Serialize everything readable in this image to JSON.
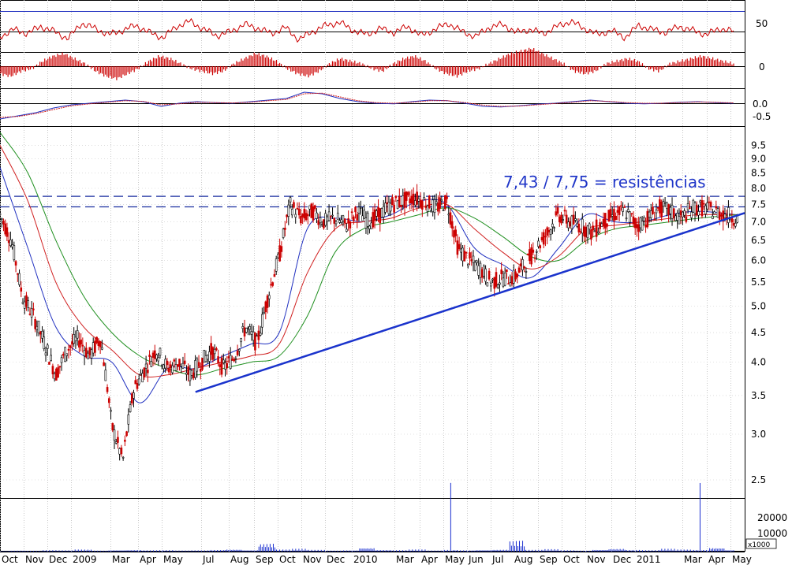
{
  "colors": {
    "price": "#cc0000",
    "ma_fast": "#2030c0",
    "ma_mid": "#d02020",
    "ma_slow": "#209020",
    "trendline": "#1a33cc",
    "resistance": "#1a2fa0",
    "volume": "#1a2fd0",
    "annotation": "#2036c8",
    "grid": "#c8c8c8"
  },
  "chart_data": [
    {
      "type": "line",
      "panel": "oscillator-1",
      "yticks": [
        "50"
      ],
      "reference_lines": [
        50
      ],
      "series": [
        {
          "values": [
            45,
            52,
            48,
            55,
            50,
            43,
            58,
            53,
            47,
            51,
            56,
            49,
            44,
            55,
            60,
            52,
            46,
            50,
            57,
            53,
            48,
            54,
            42,
            50,
            56,
            59,
            51,
            47,
            53,
            49,
            55,
            46,
            52,
            58,
            50,
            45,
            54,
            57,
            49,
            52,
            48,
            55,
            60,
            53,
            47,
            51,
            44,
            56,
            52,
            49,
            55,
            51,
            47,
            53,
            50
          ]
        }
      ]
    },
    {
      "type": "bar",
      "panel": "histogram",
      "yticks": [
        "0"
      ],
      "values": [
        -3,
        -4,
        -2,
        -1,
        2,
        4,
        5,
        3,
        1,
        -2,
        -4,
        -5,
        -3,
        -1,
        2,
        4,
        3,
        1,
        -1,
        -2,
        -3,
        -2,
        1,
        3,
        5,
        4,
        2,
        -1,
        -3,
        -4,
        -2,
        1,
        3,
        2,
        1,
        -1,
        -2,
        1,
        3,
        4,
        2,
        -1,
        -3,
        -4,
        -2,
        -1,
        1,
        3,
        5,
        6,
        7,
        5,
        3,
        1,
        -2,
        -3,
        -2,
        1,
        2,
        3,
        2,
        -1,
        -2,
        1,
        2,
        3,
        4,
        3,
        2,
        1
      ]
    },
    {
      "type": "line",
      "panel": "macd",
      "yticks": [
        "0.0",
        "-0.5"
      ],
      "series": [
        {
          "values": [
            -0.5,
            -0.4,
            -0.3,
            -0.15,
            -0.05,
            0.0,
            0.05,
            0.1,
            0.05,
            -0.1,
            0.0,
            0.05,
            0.02,
            0.0,
            0.05,
            0.1,
            0.15,
            0.35,
            0.3,
            0.15,
            0.05,
            0.0,
            -0.02,
            0.05,
            0.1,
            0.08,
            0.0,
            -0.1,
            -0.12,
            -0.08,
            -0.03,
            0.0,
            0.05,
            0.1,
            0.05,
            0.0,
            -0.02,
            0.0,
            0.03,
            0.05,
            0.02,
            0.0
          ]
        },
        {
          "values": [
            -0.45,
            -0.42,
            -0.33,
            -0.2,
            -0.08,
            -0.02,
            0.03,
            0.08,
            0.06,
            -0.05,
            -0.02,
            0.03,
            0.02,
            0.01,
            0.03,
            0.08,
            0.12,
            0.3,
            0.32,
            0.2,
            0.08,
            0.02,
            0.0,
            0.03,
            0.08,
            0.08,
            0.02,
            -0.06,
            -0.1,
            -0.09,
            -0.05,
            -0.01,
            0.03,
            0.08,
            0.06,
            0.02,
            0.0,
            0.0,
            0.02,
            0.04,
            0.03,
            0.01
          ]
        }
      ]
    },
    {
      "type": "line",
      "panel": "price",
      "scale": "log",
      "yticks": [
        "9.5",
        "9.0",
        "8.5",
        "8.0",
        "7.5",
        "7.0",
        "6.5",
        "6.0",
        "5.5",
        "5.0",
        "4.5",
        "4.0",
        "3.5",
        "3.0",
        "2.5"
      ],
      "ylim": [
        2.3,
        10.2
      ],
      "xticks": [
        "Oct",
        "Nov",
        "Dec",
        "2009",
        "Mar",
        "Apr",
        "May",
        "Jul",
        "Aug",
        "Sep",
        "Oct",
        "Nov",
        "Dec",
        "2010",
        "Mar",
        "Apr",
        "May",
        "Jun",
        "Jul",
        "Aug",
        "Sep",
        "Oct",
        "Nov",
        "Dec",
        "2011",
        "Mar",
        "Apr",
        "May"
      ],
      "xlim": [
        0,
        40
      ],
      "series": [
        {
          "name": "price",
          "x": [
            0,
            0.6,
            1.2,
            1.8,
            2.4,
            3.0,
            3.6,
            4.2,
            4.8,
            5.4,
            6.0,
            6.6,
            7.2,
            7.8,
            8.4,
            9.0,
            9.6,
            10.2,
            10.8,
            11.4,
            12.0,
            12.6,
            13.2,
            13.8,
            14.4,
            15.0,
            15.6,
            16.2,
            16.8,
            17.4,
            18.0,
            18.6,
            19.2,
            19.8,
            20.4,
            21.0,
            21.6,
            22.2,
            22.8,
            23.4,
            24.0,
            24.6,
            25.2,
            25.8,
            26.4,
            27.0,
            27.6,
            28.2,
            28.8,
            29.4,
            30.0,
            30.6,
            31.2,
            31.8,
            32.4,
            33.0,
            33.6,
            34.2,
            34.8,
            35.4,
            36.0,
            36.6,
            37.2,
            37.8,
            38.4,
            39.0,
            39.6
          ],
          "values": [
            7.2,
            6.5,
            5.2,
            4.8,
            4.3,
            3.8,
            4.2,
            4.4,
            4.1,
            4.4,
            3.1,
            2.7,
            3.6,
            3.9,
            4.2,
            3.9,
            4.0,
            3.8,
            4.0,
            4.2,
            3.9,
            4.1,
            4.6,
            4.3,
            5.2,
            6.1,
            7.5,
            7.1,
            7.3,
            7.0,
            7.1,
            6.9,
            7.3,
            7.0,
            7.2,
            7.5,
            7.6,
            7.7,
            7.6,
            7.4,
            7.6,
            6.3,
            6.0,
            5.8,
            5.5,
            5.6,
            5.6,
            5.9,
            6.3,
            6.7,
            7.2,
            7.0,
            6.9,
            6.7,
            7.0,
            7.2,
            7.3,
            6.9,
            7.1,
            7.4,
            7.3,
            7.1,
            7.4,
            7.4,
            7.3,
            7.2,
            7.1
          ]
        },
        {
          "name": "ma-fast",
          "x": [
            0,
            1.5,
            3,
            4.5,
            6,
            7.5,
            9,
            10.5,
            12,
            13.5,
            15,
            16.5,
            18,
            19.5,
            21,
            22.5,
            24,
            25.5,
            27,
            28.5,
            30,
            31.5,
            33,
            34.5,
            36,
            37.5,
            39.6
          ],
          "values": [
            8.7,
            6.3,
            4.6,
            4.1,
            4.0,
            3.4,
            3.9,
            3.9,
            4.1,
            4.3,
            4.5,
            6.8,
            7.1,
            7.0,
            7.2,
            7.6,
            7.5,
            6.3,
            5.9,
            5.6,
            6.3,
            7.2,
            7.0,
            7.0,
            7.2,
            7.3,
            7.2
          ]
        },
        {
          "name": "ma-mid",
          "x": [
            0,
            1.5,
            3,
            4.5,
            6,
            7.5,
            9,
            10.5,
            12,
            13.5,
            15,
            16.5,
            18,
            19.5,
            21,
            22.5,
            24,
            25.5,
            27,
            28.5,
            30,
            31.5,
            33,
            34.5,
            36,
            37.5,
            39.6
          ],
          "values": [
            9.5,
            7.6,
            5.5,
            4.6,
            4.2,
            3.8,
            3.8,
            3.9,
            4.0,
            4.1,
            4.3,
            5.7,
            6.8,
            7.0,
            7.1,
            7.4,
            7.5,
            6.8,
            6.2,
            5.8,
            6.1,
            6.8,
            6.9,
            7.0,
            7.1,
            7.2,
            7.2
          ]
        },
        {
          "name": "ma-slow",
          "x": [
            0,
            1.5,
            3,
            4.5,
            6,
            7.5,
            9,
            10.5,
            12,
            13.5,
            15,
            16.5,
            18,
            19.5,
            21,
            22.5,
            24,
            25.5,
            27,
            28.5,
            30,
            31.5,
            33,
            34.5,
            36,
            37.5,
            39.6
          ],
          "values": [
            10.0,
            8.5,
            6.5,
            5.2,
            4.5,
            4.1,
            3.9,
            3.8,
            3.9,
            4.0,
            4.1,
            4.8,
            6.2,
            6.8,
            7.0,
            7.2,
            7.4,
            7.1,
            6.6,
            6.1,
            6.0,
            6.5,
            6.8,
            6.9,
            7.0,
            7.1,
            7.2
          ]
        }
      ],
      "reference_lines": [
        7.75,
        7.43
      ],
      "trendline": {
        "from": [
          10.5,
          3.55
        ],
        "to": [
          40,
          7.25
        ]
      },
      "annotations": [
        "7,43 / 7,75 = resistências"
      ]
    },
    {
      "type": "bar",
      "panel": "volume",
      "yticks": [
        "20000",
        "10000"
      ],
      "unit_label": "x1000",
      "values": [
        200,
        300,
        250,
        400,
        350,
        600,
        300,
        450,
        500,
        380,
        420,
        300,
        350,
        500,
        700,
        450,
        2400,
        600,
        800,
        500,
        300,
        400,
        1200,
        500,
        400,
        600,
        300,
        21000,
        400,
        500,
        600,
        3200,
        500,
        700,
        400,
        300,
        600,
        900,
        500,
        400,
        800,
        600,
        22000,
        1200,
        500
      ]
    }
  ]
}
